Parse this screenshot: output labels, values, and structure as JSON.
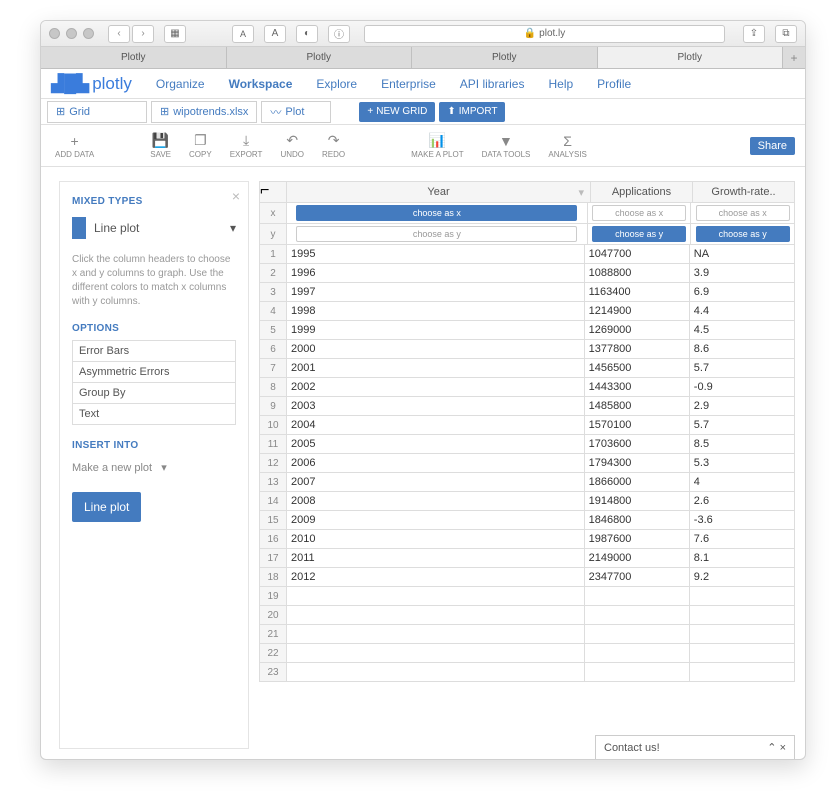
{
  "browser": {
    "url": "plot.ly",
    "tabs": [
      "Plotly",
      "Plotly",
      "Plotly",
      "Plotly"
    ]
  },
  "nav": {
    "logo": "plotly",
    "items": [
      "Organize",
      "Workspace",
      "Explore",
      "Enterprise",
      "API libraries",
      "Help",
      "Profile"
    ]
  },
  "file_tabs": {
    "t0": "Grid",
    "t1": "wipotrends.xlsx",
    "t2": "Plot",
    "new_grid": "NEW GRID",
    "import": "IMPORT"
  },
  "toolbar": {
    "add_data": "ADD DATA",
    "save": "SAVE",
    "copy": "COPY",
    "export": "EXPORT",
    "undo": "UNDO",
    "redo": "REDO",
    "make_plot": "MAKE A PLOT",
    "data_tools": "DATA TOOLS",
    "analysis": "ANALYSIS",
    "share": "Share"
  },
  "sidebar": {
    "mixed_types": "MIXED TYPES",
    "plot_type": "Line plot",
    "help": "Click the column headers to choose x and y columns to graph. Use the different colors to match x columns with y columns.",
    "options_label": "OPTIONS",
    "options": [
      "Error Bars",
      "Asymmetric Errors",
      "Group By",
      "Text"
    ],
    "insert_into": "INSERT INTO",
    "insert_value": "Make a new plot",
    "primary": "Line plot"
  },
  "grid": {
    "columns": [
      "Year",
      "Applications",
      "Growth-rate.."
    ],
    "choose_x": "choose as x",
    "choose_y": "choose as y",
    "x_label": "x",
    "y_label": "y",
    "rows": [
      [
        "1995",
        "1047700",
        "NA"
      ],
      [
        "1996",
        "1088800",
        "3.9"
      ],
      [
        "1997",
        "1163400",
        "6.9"
      ],
      [
        "1998",
        "1214900",
        "4.4"
      ],
      [
        "1999",
        "1269000",
        "4.5"
      ],
      [
        "2000",
        "1377800",
        "8.6"
      ],
      [
        "2001",
        "1456500",
        "5.7"
      ],
      [
        "2002",
        "1443300",
        "-0.9"
      ],
      [
        "2003",
        "1485800",
        "2.9"
      ],
      [
        "2004",
        "1570100",
        "5.7"
      ],
      [
        "2005",
        "1703600",
        "8.5"
      ],
      [
        "2006",
        "1794300",
        "5.3"
      ],
      [
        "2007",
        "1866000",
        "4"
      ],
      [
        "2008",
        "1914800",
        "2.6"
      ],
      [
        "2009",
        "1846800",
        "-3.6"
      ],
      [
        "2010",
        "1987600",
        "7.6"
      ],
      [
        "2011",
        "2149000",
        "8.1"
      ],
      [
        "2012",
        "2347700",
        "9.2"
      ]
    ],
    "empty_rows": [
      "19",
      "20",
      "21",
      "22",
      "23"
    ]
  },
  "contact": "Contact us!",
  "colors": {
    "accent": "#447bbf"
  }
}
